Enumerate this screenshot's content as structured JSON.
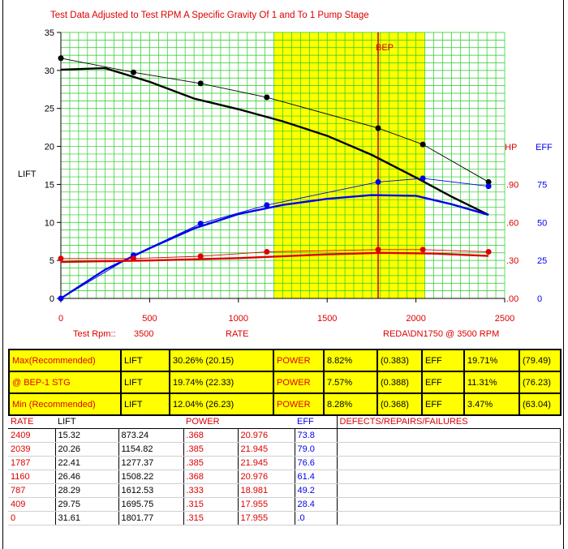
{
  "chart_data": {
    "type": "line",
    "title": "Test Data Adjusted to Test RPM A Specific Gravity Of 1 and To 1 Pump Stage",
    "xlabel": "RATE",
    "ylabel": "LIFT",
    "xlim": [
      0,
      2500
    ],
    "ylim": [
      0,
      35
    ],
    "x_ticks": [
      "0",
      "500",
      "1000",
      "1500",
      "2000",
      "2500"
    ],
    "y_ticks": [
      "0",
      "5",
      "10",
      "15",
      "20",
      "25",
      "30",
      "35"
    ],
    "hp_axis": {
      "label": "HP",
      "ticks": [
        ".00",
        ".30",
        ".60",
        ".90"
      ]
    },
    "eff_axis": {
      "label": "EFF",
      "ticks": [
        "0",
        "25",
        "50",
        "75"
      ]
    },
    "grid": true,
    "recommended_range": [
      1200,
      2050
    ],
    "bep_rate": 1787,
    "bep_label": "BEP",
    "test_rpm_label": "Test  Rpm::",
    "test_rpm": "3500",
    "model_label": "REDA\\DN1750 @  3500 RPM",
    "series": [
      {
        "name": "LIFT",
        "color": "#000000",
        "x": [
          0,
          409,
          787,
          1160,
          1787,
          2039,
          2409
        ],
        "y": [
          31.61,
          29.75,
          28.29,
          26.46,
          22.41,
          20.26,
          15.32
        ]
      },
      {
        "color": "#000000",
        "x": [
          0,
          250,
          500,
          750,
          1000,
          1250,
          1500,
          1750,
          2000,
          2200,
          2409
        ],
        "y": [
          30.1,
          30.3,
          28.5,
          26.3,
          24.9,
          23.3,
          21.4,
          18.9,
          15.9,
          13.4,
          11.0
        ]
      },
      {
        "name": "EFF",
        "color": "#0000ee",
        "x": [
          0,
          409,
          787,
          1160,
          1787,
          2039,
          2409
        ],
        "y": [
          0,
          5.68,
          9.84,
          12.28,
          15.32,
          15.8,
          14.76
        ]
      },
      {
        "color": "#0000ee",
        "x": [
          0,
          250,
          500,
          750,
          1000,
          1250,
          1500,
          1750,
          2000,
          2200,
          2409
        ],
        "y": [
          0,
          3.8,
          6.6,
          9.2,
          11.1,
          12.3,
          13.1,
          13.6,
          13.5,
          12.4,
          11.0
        ]
      },
      {
        "name": "HP",
        "color": "#dd0000",
        "x": [
          0,
          409,
          787,
          1160,
          1787,
          2039,
          2409
        ],
        "y": [
          5.25,
          5.25,
          5.55,
          6.13,
          6.42,
          6.42,
          6.13
        ]
      },
      {
        "color": "#dd0000",
        "x": [
          0,
          500,
          1000,
          1500,
          1800,
          2100,
          2409
        ],
        "y": [
          4.8,
          5.0,
          5.3,
          5.8,
          6.0,
          5.9,
          5.6
        ]
      }
    ]
  },
  "summary": [
    {
      "label": "Max(Recommended)",
      "lift_label": "LIFT",
      "lift": "30.26% (20.15)",
      "power_label": "POWER",
      "power": "8.82%",
      "power_val": "(0.383)",
      "eff_label": "EFF",
      "eff": "19.71%",
      "eff_val": "(79.49)"
    },
    {
      "label": "@ BEP-1 STG",
      "lift_label": "LIFT",
      "lift": "19.74% (22.33)",
      "power_label": "POWER",
      "power": "7.57%",
      "power_val": "(0.388)",
      "eff_label": "EFF",
      "eff": "11.31%",
      "eff_val": "(76.23)"
    },
    {
      "label": "Min (Recommended)",
      "lift_label": "LIFT",
      "lift": "12.04% (26.23)",
      "power_label": "POWER",
      "power": "8.28%",
      "power_val": "(0.368)",
      "eff_label": "EFF",
      "eff": "3.47%",
      "eff_val": "(63.04)"
    }
  ],
  "table": {
    "headers": {
      "rate": "RATE",
      "lift": "LIFT",
      "power": "POWER",
      "eff": "EFF",
      "defects": "DEFECTS/REPAIRS/FAILURES"
    },
    "rows": [
      {
        "rate": "2409",
        "lift": "15.32",
        "head": "873.24",
        "power": ".368",
        "power2": "20.976",
        "eff": "73.8"
      },
      {
        "rate": "2039",
        "lift": "20.26",
        "head": "1154.82",
        "power": ".385",
        "power2": "21.945",
        "eff": "79.0"
      },
      {
        "rate": "1787",
        "lift": "22.41",
        "head": "1277.37",
        "power": ".385",
        "power2": "21.945",
        "eff": "76.6"
      },
      {
        "rate": "1160",
        "lift": "26.46",
        "head": "1508.22",
        "power": ".368",
        "power2": "20.976",
        "eff": "61.4"
      },
      {
        "rate": "787",
        "lift": "28.29",
        "head": "1612.53",
        "power": ".333",
        "power2": "18.981",
        "eff": "49.2"
      },
      {
        "rate": "409",
        "lift": "29.75",
        "head": "1695.75",
        "power": ".315",
        "power2": "17.955",
        "eff": "28.4"
      },
      {
        "rate": "0",
        "lift": "31.61",
        "head": "1801.77",
        "power": ".315",
        "power2": "17.955",
        "eff": ".0"
      }
    ]
  }
}
